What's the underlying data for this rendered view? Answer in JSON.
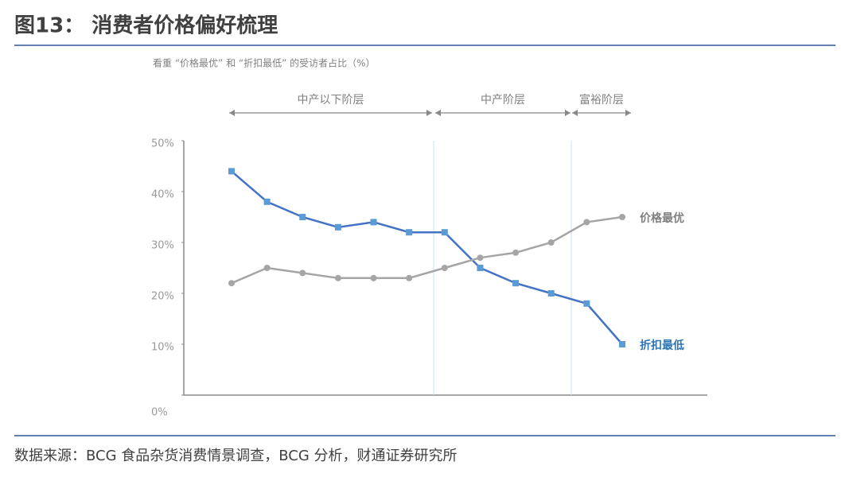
{
  "chart_data": {
    "type": "line",
    "title": "图13：   消费者价格偏好梳理",
    "subtitle": "看重 “价格最优” 和 “折扣最低” 的受访者占比（%）",
    "segments": [
      "中产以下阶层",
      "中产阶层",
      "富裕阶层"
    ],
    "categories": [
      null,
      null,
      null,
      null,
      null,
      null,
      null,
      null,
      null,
      null,
      null,
      null
    ],
    "series": [
      {
        "name": "折扣最低",
        "color": "#4472c4",
        "marker_color": "#5b9bd5",
        "marker": "square",
        "values": [
          44,
          38,
          35,
          33,
          34,
          32,
          32,
          25,
          22,
          20,
          18,
          10
        ]
      },
      {
        "name": "价格最优",
        "color": "#a5a5a5",
        "marker_color": "#a5a5a5",
        "marker": "circle",
        "values": [
          22,
          25,
          24,
          23,
          23,
          23,
          25,
          27,
          28,
          30,
          34,
          35
        ]
      }
    ],
    "ylim": [
      0,
      50
    ],
    "yticks": [
      {
        "value": 0,
        "label": "0%"
      },
      {
        "value": 10,
        "label": "10%"
      },
      {
        "value": 20,
        "label": "20%"
      },
      {
        "value": 30,
        "label": "30%"
      },
      {
        "value": 40,
        "label": "40%"
      },
      {
        "value": 50,
        "label": "50%"
      }
    ],
    "source": "数据来源：BCG 食品杂货消费情景调查，BCG 分析，财通证券研究所"
  }
}
